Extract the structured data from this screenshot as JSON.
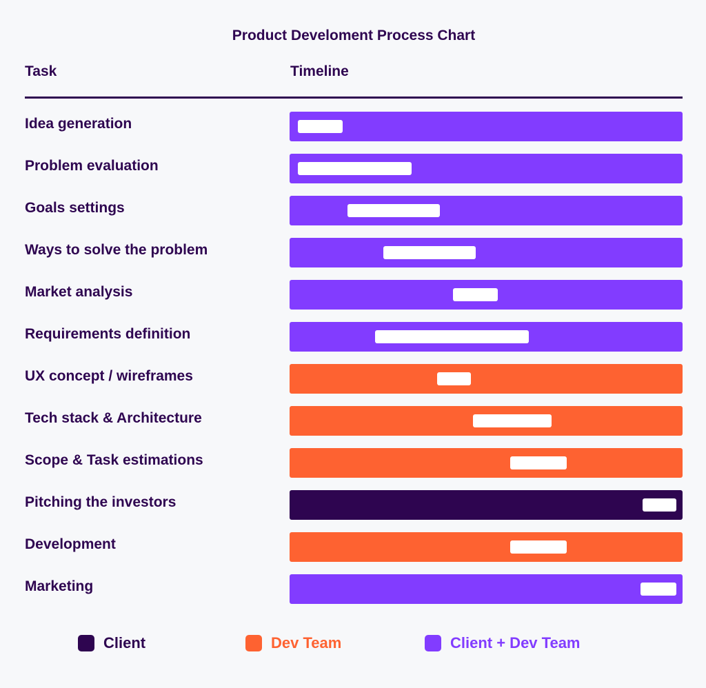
{
  "title": "Product Develoment Process Chart",
  "headers": {
    "task": "Task",
    "timeline": "Timeline"
  },
  "colors": {
    "client": "#2e0550",
    "dev_team": "#fe6231",
    "client_dev_team": "#823cff",
    "background": "#f7f8fa",
    "segment": "#ffffff"
  },
  "legend": [
    {
      "label": "Client",
      "color": "#2e0550",
      "key": "client"
    },
    {
      "label": "Dev Team",
      "color": "#fe6231",
      "key": "dev_team"
    },
    {
      "label": "Client + Dev Team",
      "color": "#823cff",
      "key": "client_dev_team"
    }
  ],
  "rows": [
    {
      "task": "Idea generation",
      "owner": "Client + Dev Team",
      "color": "#823cff",
      "start": 0.021,
      "end": 0.135
    },
    {
      "task": "Problem evaluation",
      "owner": "Client + Dev Team",
      "color": "#823cff",
      "start": 0.021,
      "end": 0.311
    },
    {
      "task": "Goals settings",
      "owner": "Client + Dev Team",
      "color": "#823cff",
      "start": 0.147,
      "end": 0.382
    },
    {
      "task": "Ways to solve the problem",
      "owner": "Client + Dev Team",
      "color": "#823cff",
      "start": 0.239,
      "end": 0.474
    },
    {
      "task": "Market analysis",
      "owner": "Client + Dev Team",
      "color": "#823cff",
      "start": 0.416,
      "end": 0.53
    },
    {
      "task": "Requirements definition",
      "owner": "Client + Dev Team",
      "color": "#823cff",
      "start": 0.218,
      "end": 0.609
    },
    {
      "task": "UX concept / wireframes",
      "owner": "Dev Team",
      "color": "#fe6231",
      "start": 0.375,
      "end": 0.461
    },
    {
      "task": "Tech stack & Architecture",
      "owner": "Dev Team",
      "color": "#fe6231",
      "start": 0.467,
      "end": 0.667
    },
    {
      "task": "Scope & Task estimations",
      "owner": "Dev Team",
      "color": "#fe6231",
      "start": 0.561,
      "end": 0.705
    },
    {
      "task": "Pitching the investors",
      "owner": "Client",
      "color": "#2e0550",
      "start": 0.898,
      "end": 0.984
    },
    {
      "task": "Development",
      "owner": "Dev Team",
      "color": "#fe6231",
      "start": 0.561,
      "end": 0.705
    },
    {
      "task": "Marketing",
      "owner": "Client + Dev Team",
      "color": "#823cff",
      "start": 0.893,
      "end": 0.984
    }
  ],
  "chart_data": {
    "type": "bar",
    "subtype": "gantt",
    "title": "Product Develoment Process Chart",
    "xlabel": "Timeline",
    "ylabel": "Task",
    "categories": [
      "Idea generation",
      "Problem evaluation",
      "Goals settings",
      "Ways to solve the problem",
      "Market analysis",
      "Requirements definition",
      "UX concept / wireframes",
      "Tech stack & Architecture",
      "Scope & Task estimations",
      "Pitching the investors",
      "Development",
      "Marketing"
    ],
    "series": [
      {
        "name": "start (fraction of timeline)",
        "values": [
          0.021,
          0.021,
          0.147,
          0.239,
          0.416,
          0.218,
          0.375,
          0.467,
          0.561,
          0.898,
          0.561,
          0.893
        ]
      },
      {
        "name": "end (fraction of timeline)",
        "values": [
          0.135,
          0.311,
          0.382,
          0.474,
          0.53,
          0.609,
          0.461,
          0.667,
          0.705,
          0.984,
          0.705,
          0.984
        ]
      }
    ],
    "owners": [
      "Client + Dev Team",
      "Client + Dev Team",
      "Client + Dev Team",
      "Client + Dev Team",
      "Client + Dev Team",
      "Client + Dev Team",
      "Dev Team",
      "Dev Team",
      "Dev Team",
      "Client",
      "Dev Team",
      "Client + Dev Team"
    ],
    "legend": [
      "Client",
      "Dev Team",
      "Client + Dev Team"
    ],
    "legend_position": "bottom",
    "xlim": [
      0,
      1
    ],
    "grid": false
  }
}
